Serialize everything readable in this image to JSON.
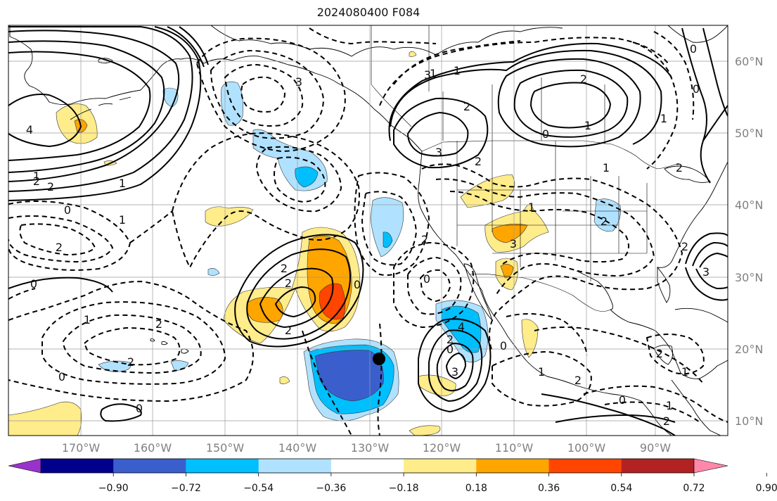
{
  "title": "2024080400 F084",
  "map": {
    "lon_labels": [
      "170°W",
      "160°W",
      "150°W",
      "140°W",
      "130°W",
      "120°W",
      "110°W",
      "100°W",
      "90°W"
    ],
    "lat_labels": [
      "60°N",
      "50°N",
      "40°N",
      "30°N",
      "20°N",
      "10°N"
    ],
    "contour_labels": [
      "4",
      "2",
      "2",
      "1",
      "0",
      "1",
      "2",
      "0",
      "1",
      "2",
      "2",
      "0",
      "2",
      "2",
      "2",
      "0",
      "3",
      "3",
      "2",
      "3",
      "1",
      "0",
      "2",
      "1",
      "2",
      "2",
      "0",
      "3",
      "1",
      "0",
      "2",
      "3",
      "4",
      "2",
      "2",
      "1",
      "0",
      "0",
      "1",
      "2",
      "1",
      "2",
      "2",
      "1",
      "3",
      "0",
      "0",
      "1",
      "1",
      "2",
      "1",
      "0"
    ],
    "storm_marker": "black-dot"
  },
  "colorbar": {
    "colors": [
      "#9932cc",
      "#00008b",
      "#3a5fcd",
      "#00bfff",
      "#b0e2ff",
      "#ffffff",
      "#ffec8b",
      "#ffa500",
      "#ff4500",
      "#b22222",
      "#ff88aa"
    ],
    "tick_labels": [
      "−0.90",
      "−0.72",
      "−0.54",
      "−0.36",
      "−0.18",
      "0.18",
      "0.36",
      "0.54",
      "0.72",
      "0.90"
    ]
  }
}
